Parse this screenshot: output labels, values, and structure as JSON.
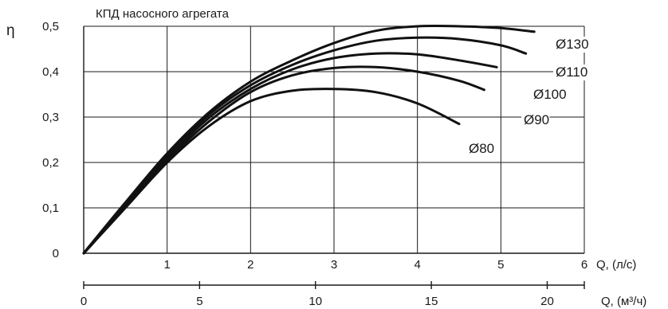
{
  "chart_data": {
    "type": "line",
    "title": "КПД насосного агрегата",
    "ylabel": "η",
    "xlabel": "Q, (л/с)",
    "x2label": "Q, (м³/ч)",
    "xlim": [
      0,
      6
    ],
    "ylim": [
      0,
      0.5
    ],
    "yticks": [
      {
        "v": 0,
        "label": "0"
      },
      {
        "v": 0.1,
        "label": "0,1"
      },
      {
        "v": 0.2,
        "label": "0,2"
      },
      {
        "v": 0.3,
        "label": "0,3"
      },
      {
        "v": 0.4,
        "label": "0,4"
      },
      {
        "v": 0.5,
        "label": "0,5"
      }
    ],
    "xticks": [
      {
        "v": 1,
        "label": "1"
      },
      {
        "v": 2,
        "label": "2"
      },
      {
        "v": 3,
        "label": "3"
      },
      {
        "v": 4,
        "label": "4"
      },
      {
        "v": 5,
        "label": "5"
      },
      {
        "v": 6,
        "label": "6"
      }
    ],
    "x2lim": [
      0,
      21.6
    ],
    "x2ticks": [
      {
        "v": 0,
        "label": "0"
      },
      {
        "v": 5,
        "label": "5"
      },
      {
        "v": 10,
        "label": "10"
      },
      {
        "v": 15,
        "label": "15"
      },
      {
        "v": 20,
        "label": "20"
      }
    ],
    "grid": true,
    "series": [
      {
        "name": "Ø80",
        "x": [
          0,
          0.1,
          0.5,
          1,
          1.5,
          2,
          2.5,
          3,
          3.5,
          4,
          4.5
        ],
        "y": [
          0,
          0.02,
          0.1,
          0.2,
          0.28,
          0.335,
          0.358,
          0.362,
          0.355,
          0.33,
          0.285
        ]
      },
      {
        "name": "Ø90",
        "x": [
          0,
          0.1,
          0.5,
          1,
          1.5,
          2,
          2.5,
          3,
          3.5,
          4,
          4.5,
          4.8
        ],
        "y": [
          0,
          0.02,
          0.105,
          0.205,
          0.29,
          0.355,
          0.392,
          0.408,
          0.41,
          0.4,
          0.38,
          0.36
        ]
      },
      {
        "name": "Ø100",
        "x": [
          0,
          0.1,
          0.5,
          1,
          1.5,
          2,
          2.5,
          3,
          3.5,
          4,
          4.5,
          4.95
        ],
        "y": [
          0,
          0.021,
          0.108,
          0.21,
          0.298,
          0.362,
          0.405,
          0.43,
          0.44,
          0.438,
          0.425,
          0.41
        ]
      },
      {
        "name": "Ø110",
        "x": [
          0,
          0.1,
          0.5,
          1,
          1.5,
          2,
          2.5,
          3,
          3.5,
          4,
          4.5,
          5,
          5.3
        ],
        "y": [
          0,
          0.022,
          0.11,
          0.215,
          0.305,
          0.37,
          0.415,
          0.447,
          0.468,
          0.475,
          0.472,
          0.458,
          0.44
        ]
      },
      {
        "name": "Ø130",
        "x": [
          0,
          0.1,
          0.5,
          1,
          1.5,
          2,
          2.5,
          3,
          3.5,
          4,
          4.5,
          5,
          5.4
        ],
        "y": [
          0,
          0.023,
          0.112,
          0.22,
          0.31,
          0.378,
          0.425,
          0.463,
          0.49,
          0.5,
          0.5,
          0.496,
          0.488
        ]
      }
    ]
  }
}
